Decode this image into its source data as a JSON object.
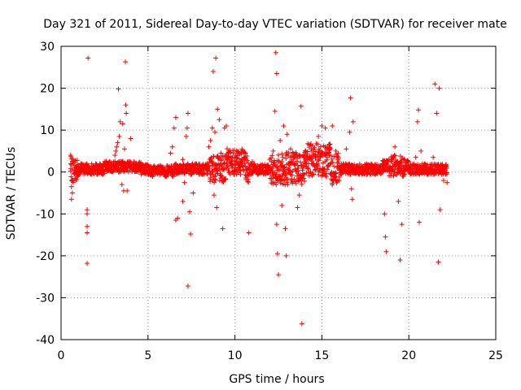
{
  "chart_data": {
    "type": "scatter",
    "title": "Day 321 of 2011, Sidereal Day-to-day VTEC variation (SDTVAR) for receiver mate",
    "xlabel": "GPS time / hours",
    "ylabel": "SDTVAR / TECUs",
    "xlim": [
      0,
      25
    ],
    "ylim": [
      -40,
      30
    ],
    "xticks": [
      0,
      5,
      10,
      15,
      20,
      25
    ],
    "yticks": [
      -40,
      -30,
      -20,
      -10,
      0,
      10,
      20,
      30
    ],
    "grid": true,
    "marker": "+",
    "color": "#ff0000",
    "series": [
      {
        "name": "SDTVAR",
        "points": [
          [
            0.55,
            4.0
          ],
          [
            0.6,
            -3.5
          ],
          [
            0.6,
            -6.5
          ],
          [
            0.65,
            -5.0
          ],
          [
            0.7,
            -2.5
          ],
          [
            0.8,
            -1.5
          ],
          [
            0.9,
            -0.5
          ],
          [
            1.0,
            0.2
          ],
          [
            1.2,
            0.5
          ],
          [
            1.4,
            0.8
          ],
          [
            1.5,
            -9.0
          ],
          [
            1.5,
            -10.0
          ],
          [
            1.5,
            -13.0
          ],
          [
            1.5,
            -14.5
          ],
          [
            1.5,
            -21.8
          ],
          [
            1.55,
            27.2
          ],
          [
            1.6,
            0.7
          ],
          [
            1.8,
            0.9
          ],
          [
            2.0,
            1.0
          ],
          [
            2.2,
            1.2
          ],
          [
            2.4,
            1.3
          ],
          [
            2.6,
            1.1
          ],
          [
            2.8,
            1.0
          ],
          [
            3.0,
            1.5
          ],
          [
            3.1,
            4.0
          ],
          [
            3.15,
            5.0
          ],
          [
            3.2,
            6.0
          ],
          [
            3.25,
            7.0
          ],
          [
            3.3,
            19.8
          ],
          [
            3.35,
            8.5
          ],
          [
            3.4,
            12.0
          ],
          [
            3.45,
            2.0
          ],
          [
            3.5,
            -3.0
          ],
          [
            3.55,
            11.5
          ],
          [
            3.6,
            -4.5
          ],
          [
            3.65,
            5.5
          ],
          [
            3.7,
            26.3
          ],
          [
            3.72,
            16.0
          ],
          [
            3.75,
            14.0
          ],
          [
            3.8,
            -4.5
          ],
          [
            3.9,
            2.5
          ],
          [
            4.0,
            8.0
          ],
          [
            4.2,
            1.8
          ],
          [
            4.4,
            1.6
          ],
          [
            4.6,
            1.5
          ],
          [
            4.8,
            1.4
          ],
          [
            5.0,
            1.0
          ],
          [
            5.2,
            0.5
          ],
          [
            5.4,
            0.3
          ],
          [
            5.6,
            0.0
          ],
          [
            5.8,
            0.2
          ],
          [
            6.0,
            0.5
          ],
          [
            6.2,
            0.5
          ],
          [
            6.3,
            4.5
          ],
          [
            6.4,
            6.0
          ],
          [
            6.5,
            10.5
          ],
          [
            6.6,
            13.0
          ],
          [
            6.6,
            -11.5
          ],
          [
            6.7,
            -11.0
          ],
          [
            6.8,
            1.5
          ],
          [
            7.0,
            3.0
          ],
          [
            7.0,
            -7.0
          ],
          [
            7.1,
            -2.5
          ],
          [
            7.2,
            8.5
          ],
          [
            7.25,
            10.5
          ],
          [
            7.3,
            14.0
          ],
          [
            7.3,
            -27.2
          ],
          [
            7.4,
            -9.5
          ],
          [
            7.45,
            -14.8
          ],
          [
            7.5,
            1.0
          ],
          [
            7.6,
            -5.0
          ],
          [
            7.8,
            0.5
          ],
          [
            8.0,
            0.2
          ],
          [
            8.2,
            1.0
          ],
          [
            8.4,
            2.0
          ],
          [
            8.5,
            6.0
          ],
          [
            8.6,
            7.5
          ],
          [
            8.7,
            10.5
          ],
          [
            8.75,
            24.0
          ],
          [
            8.8,
            -5.5
          ],
          [
            8.85,
            9.5
          ],
          [
            8.9,
            27.2
          ],
          [
            8.95,
            -8.5
          ],
          [
            9.0,
            15.0
          ],
          [
            9.1,
            12.5
          ],
          [
            9.2,
            4.5
          ],
          [
            9.3,
            -13.5
          ],
          [
            9.4,
            10.5
          ],
          [
            9.5,
            11.0
          ],
          [
            9.6,
            3.5
          ],
          [
            9.8,
            2.5
          ],
          [
            10.0,
            3.5
          ],
          [
            10.2,
            4.5
          ],
          [
            10.4,
            5.5
          ],
          [
            10.6,
            4.5
          ],
          [
            10.8,
            -14.5
          ],
          [
            11.0,
            2.5
          ],
          [
            11.2,
            1.5
          ],
          [
            11.4,
            0.8
          ],
          [
            11.6,
            0.5
          ],
          [
            11.8,
            1.0
          ],
          [
            12.0,
            3.0
          ],
          [
            12.2,
            5.0
          ],
          [
            12.3,
            14.5
          ],
          [
            12.35,
            28.5
          ],
          [
            12.4,
            23.5
          ],
          [
            12.4,
            -12.5
          ],
          [
            12.45,
            -19.5
          ],
          [
            12.5,
            -24.5
          ],
          [
            12.6,
            7.5
          ],
          [
            12.7,
            -8.0
          ],
          [
            12.8,
            11.0
          ],
          [
            12.9,
            -13.5
          ],
          [
            12.95,
            -20.0
          ],
          [
            13.0,
            9.0
          ],
          [
            13.2,
            5.5
          ],
          [
            13.4,
            3.5
          ],
          [
            13.6,
            -8.5
          ],
          [
            13.7,
            -5.5
          ],
          [
            13.8,
            15.7
          ],
          [
            13.85,
            -36.2
          ],
          [
            14.0,
            4.0
          ],
          [
            14.2,
            3.5
          ],
          [
            14.4,
            3.5
          ],
          [
            14.6,
            4.0
          ],
          [
            14.8,
            8.5
          ],
          [
            15.0,
            11.0
          ],
          [
            15.2,
            10.5
          ],
          [
            15.4,
            6.5
          ],
          [
            15.5,
            4.0
          ],
          [
            15.6,
            11.0
          ],
          [
            15.8,
            5.0
          ],
          [
            16.0,
            -2.0
          ],
          [
            16.2,
            0.5
          ],
          [
            16.4,
            5.5
          ],
          [
            16.6,
            9.5
          ],
          [
            16.65,
            17.7
          ],
          [
            16.7,
            -4.0
          ],
          [
            16.75,
            -6.5
          ],
          [
            16.8,
            12.0
          ],
          [
            17.0,
            1.5
          ],
          [
            17.5,
            1.0
          ],
          [
            18.0,
            1.2
          ],
          [
            18.5,
            1.5
          ],
          [
            18.6,
            -10.0
          ],
          [
            18.65,
            -15.5
          ],
          [
            18.7,
            -19.0
          ],
          [
            19.0,
            2.5
          ],
          [
            19.2,
            6.0
          ],
          [
            19.4,
            -7.0
          ],
          [
            19.5,
            -21.0
          ],
          [
            19.6,
            -12.5
          ],
          [
            19.8,
            0.5
          ],
          [
            20.0,
            1.0
          ],
          [
            20.4,
            3.5
          ],
          [
            20.5,
            12.0
          ],
          [
            20.55,
            14.8
          ],
          [
            20.6,
            -12.0
          ],
          [
            20.7,
            5.0
          ],
          [
            21.0,
            0.5
          ],
          [
            21.4,
            3.5
          ],
          [
            21.5,
            21.0
          ],
          [
            21.6,
            14.0
          ],
          [
            21.7,
            -21.5
          ],
          [
            21.75,
            20.0
          ],
          [
            21.8,
            -9.0
          ],
          [
            22.0,
            -2.0
          ],
          [
            22.1,
            0.5
          ],
          [
            22.2,
            -2.5
          ]
        ]
      }
    ]
  }
}
